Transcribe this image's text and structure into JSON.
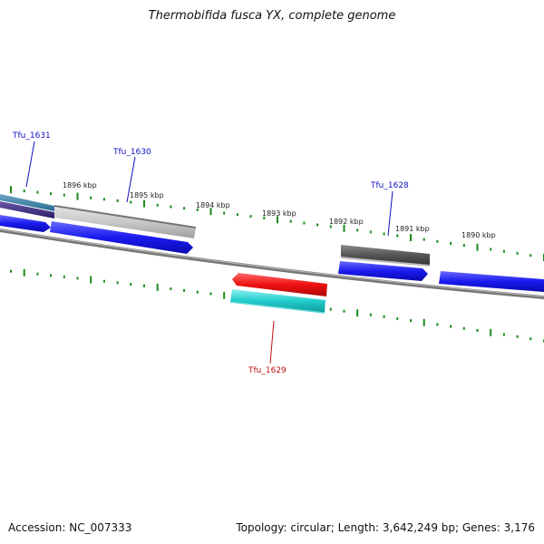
{
  "title": "Thermobifida fusca YX, complete genome",
  "footer": {
    "accession": "Accession: NC_007333",
    "summary": "Topology: circular; Length: 3,642,249 bp; Genes: 3,176"
  },
  "scale_labels": [
    "1896 kbp",
    "1895 kbp",
    "1894 kbp",
    "1893 kbp",
    "1892 kbp",
    "1891 kbp",
    "1890 kbp"
  ],
  "gene_labels": [
    {
      "name": "Tfu_1631",
      "color": "#1010c0"
    },
    {
      "name": "Tfu_1630",
      "color": "#1010c0"
    },
    {
      "name": "Tfu_1628",
      "color": "#1010c0"
    },
    {
      "name": "Tfu_1629",
      "color": "#c01010"
    }
  ],
  "colors": {
    "forward_strand": "#1a1aee",
    "reverse_strand": "#ee1111",
    "tick": "#1a8a1a",
    "backbone": "#777777",
    "rna_cyan": "#22cccc",
    "gray_feature": "#c8c8c8",
    "dark_feature": "#555555"
  }
}
